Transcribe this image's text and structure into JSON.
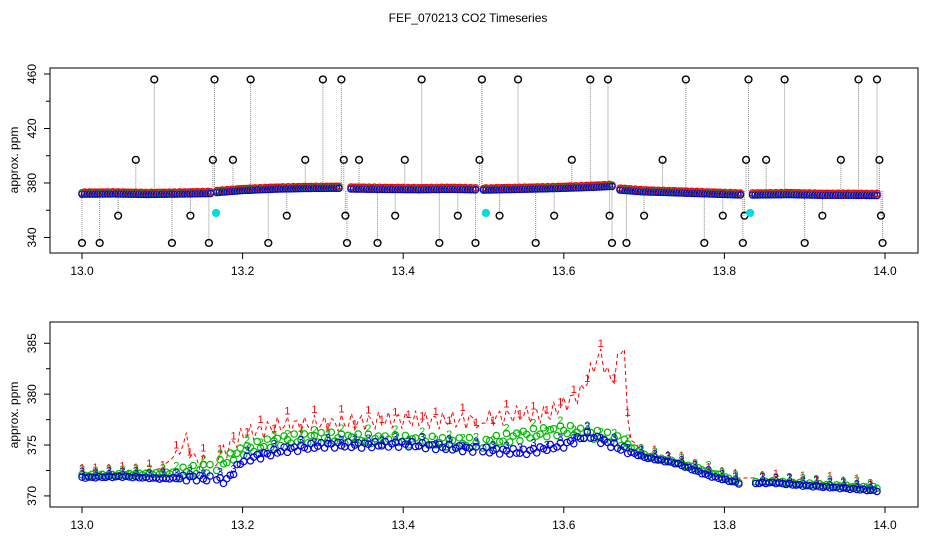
{
  "title": "FEF_070213  CO2 Timeseries",
  "colors": {
    "c1": "#ff0000",
    "c2": "#00bb00",
    "c3": "#0000dd",
    "flag": "#000000",
    "cal": "#00dddd",
    "drop": "#888888"
  },
  "chart_data": [
    {
      "type": "scatter",
      "ylabel": "approx. ppm",
      "xlim": [
        13.0,
        14.0
      ],
      "ylim": [
        333,
        460
      ],
      "xticks": [
        13.0,
        13.2,
        13.4,
        13.6,
        13.8,
        14.0
      ],
      "xtick_labels": [
        "13.0",
        "13.2",
        "13.4",
        "13.6",
        "13.8",
        "14.0"
      ],
      "yticks": [
        340,
        380,
        420,
        460
      ],
      "ytick_labels": [
        "340",
        "380",
        "420",
        "460"
      ],
      "segments": [
        {
          "x": [
            13.0,
            13.04,
            13.08,
            13.12,
            13.16
          ],
          "y": [
            371.8,
            372.0,
            371.6,
            371.9,
            372.3
          ]
        },
        {
          "x": [
            13.168,
            13.2,
            13.24,
            13.28,
            13.32
          ],
          "y": [
            373.0,
            374.5,
            375.5,
            376.0,
            376.2
          ]
        },
        {
          "x": [
            13.335,
            13.38,
            13.42,
            13.46,
            13.49
          ],
          "y": [
            375.6,
            375.3,
            375.1,
            375.4,
            375.0
          ]
        },
        {
          "x": [
            13.5,
            13.54,
            13.58,
            13.62,
            13.66
          ],
          "y": [
            374.8,
            375.3,
            375.8,
            376.5,
            377.5
          ]
        },
        {
          "x": [
            13.67,
            13.7,
            13.74,
            13.78,
            13.82
          ],
          "y": [
            374.8,
            373.5,
            372.8,
            372.0,
            371.2
          ]
        },
        {
          "x": [
            13.835,
            13.88,
            13.92,
            13.96,
            13.99
          ],
          "y": [
            371.2,
            371.5,
            371.0,
            371.0,
            370.8
          ]
        }
      ],
      "flagged_points": [
        {
          "x": 13.0,
          "y": 336
        },
        {
          "x": 13.022,
          "y": 336
        },
        {
          "x": 13.045,
          "y": 356
        },
        {
          "x": 13.067,
          "y": 397
        },
        {
          "x": 13.09,
          "y": 456
        },
        {
          "x": 13.112,
          "y": 336
        },
        {
          "x": 13.135,
          "y": 356
        },
        {
          "x": 13.158,
          "y": 336
        },
        {
          "x": 13.163,
          "y": 397
        },
        {
          "x": 13.165,
          "y": 456
        },
        {
          "x": 13.188,
          "y": 397
        },
        {
          "x": 13.21,
          "y": 456
        },
        {
          "x": 13.232,
          "y": 336
        },
        {
          "x": 13.255,
          "y": 356
        },
        {
          "x": 13.278,
          "y": 397
        },
        {
          "x": 13.3,
          "y": 456
        },
        {
          "x": 13.323,
          "y": 456
        },
        {
          "x": 13.326,
          "y": 397
        },
        {
          "x": 13.328,
          "y": 356
        },
        {
          "x": 13.33,
          "y": 336
        },
        {
          "x": 13.345,
          "y": 397
        },
        {
          "x": 13.368,
          "y": 336
        },
        {
          "x": 13.39,
          "y": 356
        },
        {
          "x": 13.402,
          "y": 397
        },
        {
          "x": 13.423,
          "y": 456
        },
        {
          "x": 13.445,
          "y": 336
        },
        {
          "x": 13.468,
          "y": 356
        },
        {
          "x": 13.49,
          "y": 336
        },
        {
          "x": 13.495,
          "y": 397
        },
        {
          "x": 13.498,
          "y": 456
        },
        {
          "x": 13.52,
          "y": 356
        },
        {
          "x": 13.543,
          "y": 456
        },
        {
          "x": 13.565,
          "y": 336
        },
        {
          "x": 13.588,
          "y": 356
        },
        {
          "x": 13.61,
          "y": 397
        },
        {
          "x": 13.633,
          "y": 456
        },
        {
          "x": 13.655,
          "y": 456
        },
        {
          "x": 13.657,
          "y": 356
        },
        {
          "x": 13.66,
          "y": 336
        },
        {
          "x": 13.678,
          "y": 336
        },
        {
          "x": 13.7,
          "y": 356
        },
        {
          "x": 13.723,
          "y": 397
        },
        {
          "x": 13.752,
          "y": 456
        },
        {
          "x": 13.775,
          "y": 336
        },
        {
          "x": 13.798,
          "y": 356
        },
        {
          "x": 13.823,
          "y": 336
        },
        {
          "x": 13.825,
          "y": 356
        },
        {
          "x": 13.827,
          "y": 397
        },
        {
          "x": 13.83,
          "y": 456
        },
        {
          "x": 13.852,
          "y": 397
        },
        {
          "x": 13.875,
          "y": 456
        },
        {
          "x": 13.9,
          "y": 336
        },
        {
          "x": 13.922,
          "y": 356
        },
        {
          "x": 13.945,
          "y": 397
        },
        {
          "x": 13.967,
          "y": 456
        },
        {
          "x": 13.99,
          "y": 456
        },
        {
          "x": 13.993,
          "y": 397
        },
        {
          "x": 13.995,
          "y": 356
        },
        {
          "x": 13.997,
          "y": 336
        }
      ],
      "calibration_points": [
        {
          "x": 13.167,
          "y": 358
        },
        {
          "x": 13.503,
          "y": 358
        },
        {
          "x": 13.832,
          "y": 358
        }
      ]
    },
    {
      "type": "line",
      "ylabel": "approx. ppm",
      "xlim": [
        13.0,
        14.0
      ],
      "ylim": [
        369.5,
        386.5
      ],
      "xticks": [
        13.0,
        13.2,
        13.4,
        13.6,
        13.8,
        14.0
      ],
      "xtick_labels": [
        "13.0",
        "13.2",
        "13.4",
        "13.6",
        "13.8",
        "14.0"
      ],
      "yticks": [
        370,
        375,
        380,
        385
      ],
      "ytick_labels": [
        "370",
        "375",
        "380",
        "385"
      ],
      "series_labels": [
        "1",
        "2",
        "3"
      ],
      "series": [
        {
          "name": "1",
          "x": [
            13.0,
            13.05,
            13.1,
            13.13,
            13.14,
            13.16,
            13.2,
            13.25,
            13.28,
            13.33,
            13.4,
            13.45,
            13.5,
            13.54,
            13.58,
            13.62,
            13.645,
            13.66,
            13.675,
            13.68,
            13.7,
            13.74,
            13.78,
            13.82,
            13.86,
            13.9,
            13.94,
            13.99
          ],
          "y": [
            372.2,
            372.3,
            372.6,
            375.5,
            373.5,
            373.2,
            376.0,
            377.0,
            377.0,
            377.2,
            377.5,
            377.4,
            377.5,
            378.0,
            378.0,
            380.0,
            384.0,
            381.0,
            385.5,
            376.0,
            374.0,
            373.5,
            372.2,
            371.6,
            371.6,
            371.3,
            371.2,
            370.8
          ]
        },
        {
          "name": "2",
          "x": [
            13.0,
            13.05,
            13.1,
            13.14,
            13.17,
            13.2,
            13.25,
            13.3,
            13.35,
            13.4,
            13.45,
            13.5,
            13.55,
            13.6,
            13.64,
            13.67,
            13.7,
            13.74,
            13.78,
            13.82,
            13.86,
            13.9,
            13.94,
            13.99
          ],
          "y": [
            372.0,
            372.1,
            372.2,
            372.5,
            373.0,
            374.5,
            375.5,
            375.8,
            375.6,
            375.5,
            375.3,
            375.2,
            376.0,
            376.5,
            376.0,
            375.5,
            374.0,
            373.3,
            372.4,
            371.3,
            371.4,
            371.2,
            371.0,
            370.8
          ]
        },
        {
          "name": "3",
          "x": [
            13.0,
            13.05,
            13.1,
            13.14,
            13.18,
            13.2,
            13.25,
            13.3,
            13.35,
            13.4,
            13.45,
            13.5,
            13.55,
            13.6,
            13.63,
            13.66,
            13.7,
            13.74,
            13.78,
            13.82,
            13.86,
            13.9,
            13.94,
            13.99
          ],
          "y": [
            371.8,
            371.9,
            371.7,
            371.8,
            371.5,
            373.5,
            374.5,
            375.0,
            375.0,
            375.1,
            374.8,
            374.5,
            374.3,
            375.0,
            376.0,
            375.0,
            373.8,
            373.2,
            372.0,
            371.2,
            371.3,
            371.0,
            370.8,
            370.5
          ]
        }
      ]
    }
  ]
}
